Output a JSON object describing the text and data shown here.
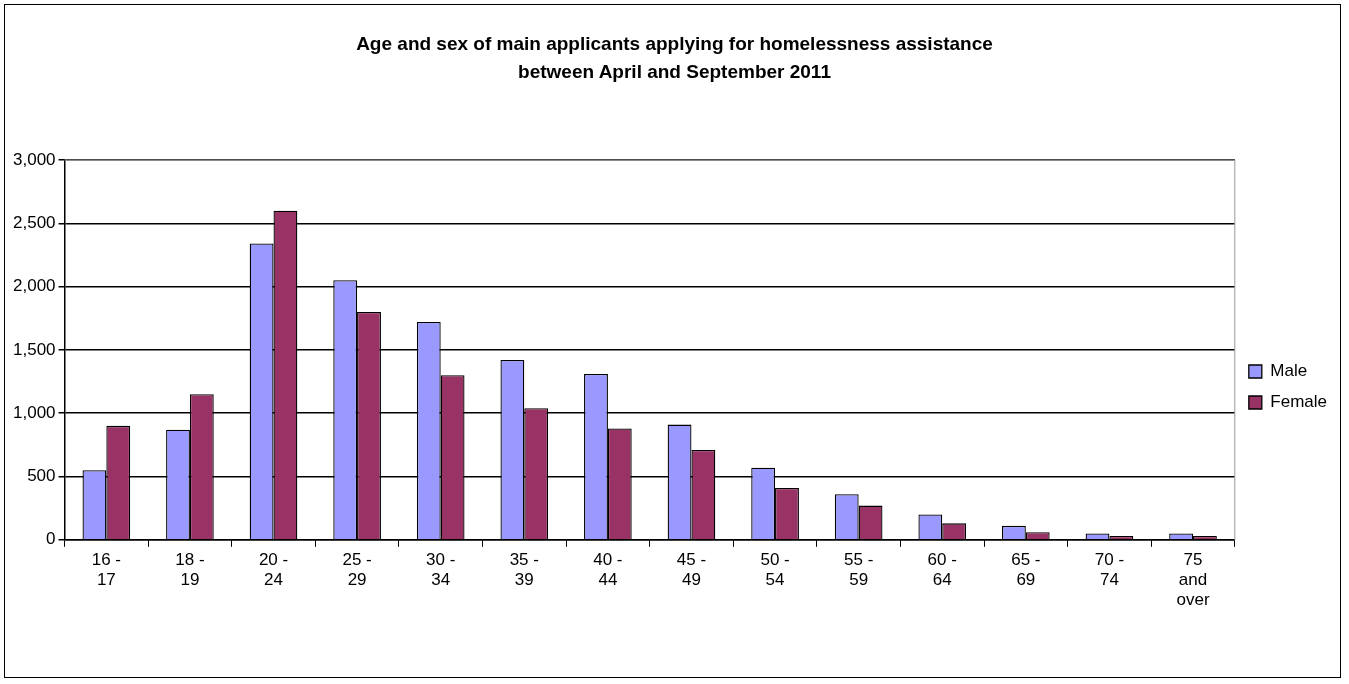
{
  "chart_data": {
    "type": "bar",
    "title": "Age and sex of main applicants applying for homelessness assistance between April and September 2011",
    "categories": [
      "16 - 17",
      "18 - 19",
      "20 - 24",
      "25 - 29",
      "30 - 34",
      "35 - 39",
      "40 - 44",
      "45 - 49",
      "50 - 54",
      "55 - 59",
      "60 - 64",
      "65 - 69",
      "70 - 74",
      "75 and over"
    ],
    "series": [
      {
        "name": "Male",
        "color": "#9999ff",
        "values": [
          550,
          870,
          2340,
          2050,
          1720,
          1420,
          1310,
          910,
          570,
          360,
          200,
          110,
          50,
          50
        ]
      },
      {
        "name": "Female",
        "color": "#993366",
        "values": [
          900,
          1150,
          2600,
          1800,
          1300,
          1040,
          880,
          710,
          410,
          270,
          130,
          60,
          30,
          30
        ]
      }
    ],
    "ylim": [
      0,
      3000
    ],
    "yticks": [
      0,
      500,
      {
        "value": 1000,
        "label": "1,000"
      },
      {
        "value": 1500,
        "label": "1,500"
      },
      {
        "value": 2000,
        "label": "2,000"
      },
      {
        "value": 2500,
        "label": "2,500"
      },
      {
        "value": 3000,
        "label": "3,000"
      }
    ],
    "grid": "y",
    "legend": "right"
  }
}
